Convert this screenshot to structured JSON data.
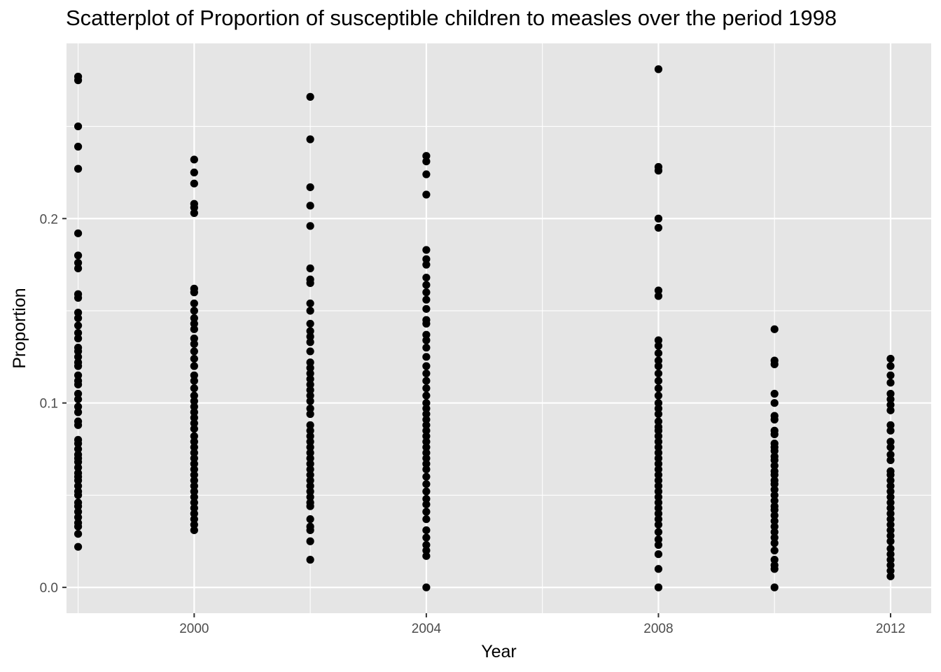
{
  "chart_data": {
    "type": "scatter",
    "title": "Scatterplot of Proportion of susceptible children to measles over the period 1998",
    "xlabel": "Year",
    "ylabel": "Proportion",
    "xlim": [
      1997.8,
      2012.7
    ],
    "ylim": [
      -0.014,
      0.295
    ],
    "x_ticks": [
      2000,
      2004,
      2008,
      2012
    ],
    "x_tick_labels": [
      "2000",
      "2004",
      "2008",
      "2012"
    ],
    "y_ticks": [
      0.0,
      0.1,
      0.2
    ],
    "y_tick_labels": [
      "0.0",
      "0.1",
      "0.2"
    ],
    "grid": true,
    "panel_background": "#e5e5e5",
    "grid_color": "#ffffff",
    "point_color": "#000000",
    "series": [
      {
        "x": 1998,
        "values": [
          0.277,
          0.275,
          0.25,
          0.239,
          0.227,
          0.192,
          0.18,
          0.176,
          0.173,
          0.159,
          0.157,
          0.149,
          0.146,
          0.142,
          0.138,
          0.135,
          0.13,
          0.128,
          0.125,
          0.122,
          0.12,
          0.115,
          0.112,
          0.11,
          0.105,
          0.102,
          0.098,
          0.095,
          0.09,
          0.088,
          0.08,
          0.078,
          0.075,
          0.072,
          0.07,
          0.068,
          0.065,
          0.062,
          0.06,
          0.058,
          0.055,
          0.052,
          0.05,
          0.046,
          0.044,
          0.041,
          0.038,
          0.035,
          0.033,
          0.029,
          0.022
        ]
      },
      {
        "x": 2000,
        "values": [
          0.232,
          0.225,
          0.219,
          0.208,
          0.206,
          0.203,
          0.162,
          0.16,
          0.154,
          0.15,
          0.146,
          0.143,
          0.14,
          0.135,
          0.132,
          0.128,
          0.124,
          0.12,
          0.115,
          0.112,
          0.108,
          0.104,
          0.101,
          0.098,
          0.095,
          0.092,
          0.089,
          0.086,
          0.082,
          0.079,
          0.076,
          0.073,
          0.07,
          0.067,
          0.064,
          0.061,
          0.058,
          0.055,
          0.052,
          0.049,
          0.046,
          0.043,
          0.04,
          0.037,
          0.034,
          0.031
        ]
      },
      {
        "x": 2002,
        "values": [
          0.266,
          0.243,
          0.217,
          0.207,
          0.196,
          0.173,
          0.167,
          0.165,
          0.154,
          0.15,
          0.143,
          0.139,
          0.136,
          0.133,
          0.128,
          0.122,
          0.119,
          0.116,
          0.113,
          0.11,
          0.107,
          0.104,
          0.101,
          0.097,
          0.094,
          0.088,
          0.085,
          0.082,
          0.079,
          0.076,
          0.073,
          0.07,
          0.067,
          0.064,
          0.061,
          0.058,
          0.055,
          0.052,
          0.049,
          0.046,
          0.044,
          0.037,
          0.033,
          0.031,
          0.025,
          0.015
        ]
      },
      {
        "x": 2004,
        "values": [
          0.234,
          0.231,
          0.224,
          0.213,
          0.183,
          0.178,
          0.175,
          0.168,
          0.164,
          0.16,
          0.156,
          0.151,
          0.145,
          0.143,
          0.137,
          0.134,
          0.13,
          0.125,
          0.12,
          0.116,
          0.112,
          0.108,
          0.104,
          0.1,
          0.097,
          0.094,
          0.091,
          0.088,
          0.085,
          0.082,
          0.079,
          0.076,
          0.073,
          0.07,
          0.067,
          0.064,
          0.06,
          0.056,
          0.052,
          0.048,
          0.045,
          0.041,
          0.037,
          0.031,
          0.027,
          0.023,
          0.02,
          0.017,
          0.0
        ]
      },
      {
        "x": 2008,
        "values": [
          0.281,
          0.228,
          0.226,
          0.2,
          0.195,
          0.161,
          0.158,
          0.134,
          0.131,
          0.127,
          0.123,
          0.12,
          0.116,
          0.112,
          0.108,
          0.104,
          0.1,
          0.097,
          0.094,
          0.09,
          0.087,
          0.085,
          0.082,
          0.079,
          0.076,
          0.073,
          0.07,
          0.067,
          0.064,
          0.061,
          0.058,
          0.055,
          0.052,
          0.049,
          0.046,
          0.043,
          0.04,
          0.037,
          0.034,
          0.03,
          0.026,
          0.023,
          0.018,
          0.01,
          0.0
        ]
      },
      {
        "x": 2010,
        "values": [
          0.14,
          0.123,
          0.121,
          0.105,
          0.1,
          0.093,
          0.091,
          0.085,
          0.083,
          0.078,
          0.076,
          0.074,
          0.071,
          0.069,
          0.066,
          0.063,
          0.061,
          0.058,
          0.056,
          0.053,
          0.05,
          0.047,
          0.044,
          0.042,
          0.039,
          0.036,
          0.033,
          0.03,
          0.027,
          0.024,
          0.02,
          0.015,
          0.012,
          0.01,
          0.0
        ]
      },
      {
        "x": 2012,
        "values": [
          0.124,
          0.12,
          0.115,
          0.111,
          0.105,
          0.102,
          0.099,
          0.096,
          0.088,
          0.085,
          0.079,
          0.076,
          0.072,
          0.069,
          0.063,
          0.061,
          0.058,
          0.055,
          0.052,
          0.049,
          0.046,
          0.043,
          0.04,
          0.037,
          0.034,
          0.031,
          0.028,
          0.025,
          0.021,
          0.018,
          0.015,
          0.012,
          0.009,
          0.006
        ]
      }
    ]
  }
}
